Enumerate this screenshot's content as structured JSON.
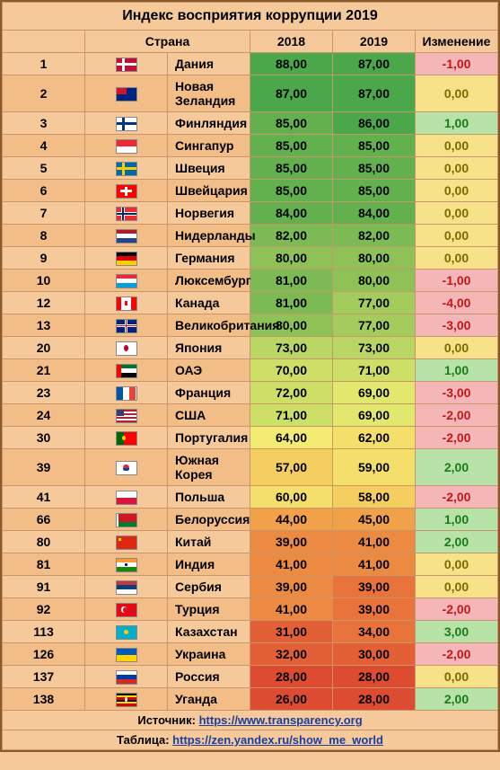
{
  "title": "Индекс восприятия коррупции 2019",
  "columns": {
    "country": "Страна",
    "y2018": "2018",
    "y2019": "2019",
    "change": "Изменение"
  },
  "footer": {
    "source_label": "Источник:",
    "source_url": "https://www.transparency.org",
    "table_label": "Таблица:",
    "table_url": "https://zen.yandex.ru/show_me_world"
  },
  "score_colors": {
    "g1": "#4aa84a",
    "g2": "#63b14e",
    "g3": "#7cbb53",
    "g4": "#8ec257",
    "g5": "#a3cc5c",
    "g6": "#b8d661",
    "g7": "#cddf67",
    "g8": "#e2e86d",
    "y1": "#f3ec73",
    "y2": "#f4df6a",
    "y3": "#f5ce60",
    "y4": "#f3b654",
    "o1": "#f0a14a",
    "o2": "#ed8a42",
    "r1": "#e9743b",
    "r2": "#e35f36",
    "r3": "#dd4b31"
  },
  "change_colors": {
    "pos": "#b7e3a8",
    "neg": "#f4b6b6",
    "zero": "#f7e28a"
  },
  "rows": [
    {
      "rank": 1,
      "flag": "dk",
      "name": "Дания",
      "v18": "88,00",
      "c18": "g1",
      "v19": "87,00",
      "c19": "g1",
      "chg": "-1,00",
      "cc": "neg"
    },
    {
      "rank": 2,
      "flag": "nz",
      "name": "Новая Зеландия",
      "v18": "87,00",
      "c18": "g1",
      "v19": "87,00",
      "c19": "g1",
      "chg": "0,00",
      "cc": "zero"
    },
    {
      "rank": 3,
      "flag": "fi",
      "name": "Финляндия",
      "v18": "85,00",
      "c18": "g2",
      "v19": "86,00",
      "c19": "g1",
      "chg": "1,00",
      "cc": "pos"
    },
    {
      "rank": 4,
      "flag": "sg",
      "name": "Сингапур",
      "v18": "85,00",
      "c18": "g2",
      "v19": "85,00",
      "c19": "g2",
      "chg": "0,00",
      "cc": "zero"
    },
    {
      "rank": 5,
      "flag": "se",
      "name": "Швеция",
      "v18": "85,00",
      "c18": "g2",
      "v19": "85,00",
      "c19": "g2",
      "chg": "0,00",
      "cc": "zero"
    },
    {
      "rank": 6,
      "flag": "ch",
      "name": "Швейцария",
      "v18": "85,00",
      "c18": "g2",
      "v19": "85,00",
      "c19": "g2",
      "chg": "0,00",
      "cc": "zero"
    },
    {
      "rank": 7,
      "flag": "no",
      "name": "Норвегия",
      "v18": "84,00",
      "c18": "g2",
      "v19": "84,00",
      "c19": "g2",
      "chg": "0,00",
      "cc": "zero"
    },
    {
      "rank": 8,
      "flag": "nl",
      "name": "Нидерланды",
      "v18": "82,00",
      "c18": "g3",
      "v19": "82,00",
      "c19": "g3",
      "chg": "0,00",
      "cc": "zero"
    },
    {
      "rank": 9,
      "flag": "de",
      "name": "Германия",
      "v18": "80,00",
      "c18": "g4",
      "v19": "80,00",
      "c19": "g4",
      "chg": "0,00",
      "cc": "zero"
    },
    {
      "rank": 10,
      "flag": "lu",
      "name": "Люксембург",
      "v18": "81,00",
      "c18": "g3",
      "v19": "80,00",
      "c19": "g4",
      "chg": "-1,00",
      "cc": "neg"
    },
    {
      "rank": 12,
      "flag": "ca",
      "name": "Канада",
      "v18": "81,00",
      "c18": "g3",
      "v19": "77,00",
      "c19": "g5",
      "chg": "-4,00",
      "cc": "neg"
    },
    {
      "rank": 13,
      "flag": "gb",
      "name": "Великобритания",
      "v18": "80,00",
      "c18": "g4",
      "v19": "77,00",
      "c19": "g5",
      "chg": "-3,00",
      "cc": "neg"
    },
    {
      "rank": 20,
      "flag": "jp",
      "name": "Япония",
      "v18": "73,00",
      "c18": "g6",
      "v19": "73,00",
      "c19": "g6",
      "chg": "0,00",
      "cc": "zero"
    },
    {
      "rank": 21,
      "flag": "ae",
      "name": "ОАЭ",
      "v18": "70,00",
      "c18": "g7",
      "v19": "71,00",
      "c19": "g7",
      "chg": "1,00",
      "cc": "pos"
    },
    {
      "rank": 23,
      "flag": "fr",
      "name": "Франция",
      "v18": "72,00",
      "c18": "g7",
      "v19": "69,00",
      "c19": "g8",
      "chg": "-3,00",
      "cc": "neg"
    },
    {
      "rank": 24,
      "flag": "us",
      "name": "США",
      "v18": "71,00",
      "c18": "g7",
      "v19": "69,00",
      "c19": "g8",
      "chg": "-2,00",
      "cc": "neg"
    },
    {
      "rank": 30,
      "flag": "pt",
      "name": "Португалия",
      "v18": "64,00",
      "c18": "y1",
      "v19": "62,00",
      "c19": "y2",
      "chg": "-2,00",
      "cc": "neg"
    },
    {
      "rank": 39,
      "flag": "kr",
      "name": "Южная Корея",
      "v18": "57,00",
      "c18": "y3",
      "v19": "59,00",
      "c19": "y2",
      "chg": "2,00",
      "cc": "pos"
    },
    {
      "rank": 41,
      "flag": "pl",
      "name": "Польша",
      "v18": "60,00",
      "c18": "y2",
      "v19": "58,00",
      "c19": "y3",
      "chg": "-2,00",
      "cc": "neg"
    },
    {
      "rank": 66,
      "flag": "by",
      "name": "Белоруссия",
      "v18": "44,00",
      "c18": "o1",
      "v19": "45,00",
      "c19": "o1",
      "chg": "1,00",
      "cc": "pos"
    },
    {
      "rank": 80,
      "flag": "cn",
      "name": "Китай",
      "v18": "39,00",
      "c18": "o2",
      "v19": "41,00",
      "c19": "o2",
      "chg": "2,00",
      "cc": "pos"
    },
    {
      "rank": 81,
      "flag": "in",
      "name": "Индия",
      "v18": "41,00",
      "c18": "o2",
      "v19": "41,00",
      "c19": "o2",
      "chg": "0,00",
      "cc": "zero"
    },
    {
      "rank": 91,
      "flag": "rs",
      "name": "Сербия",
      "v18": "39,00",
      "c18": "o2",
      "v19": "39,00",
      "c19": "r1",
      "chg": "0,00",
      "cc": "zero"
    },
    {
      "rank": 92,
      "flag": "tr",
      "name": "Турция",
      "v18": "41,00",
      "c18": "o2",
      "v19": "39,00",
      "c19": "r1",
      "chg": "-2,00",
      "cc": "neg"
    },
    {
      "rank": 113,
      "flag": "kz",
      "name": "Казахстан",
      "v18": "31,00",
      "c18": "r2",
      "v19": "34,00",
      "c19": "r1",
      "chg": "3,00",
      "cc": "pos"
    },
    {
      "rank": 126,
      "flag": "ua",
      "name": "Украина",
      "v18": "32,00",
      "c18": "r2",
      "v19": "30,00",
      "c19": "r2",
      "chg": "-2,00",
      "cc": "neg"
    },
    {
      "rank": 137,
      "flag": "ru",
      "name": "Россия",
      "v18": "28,00",
      "c18": "r3",
      "v19": "28,00",
      "c19": "r3",
      "chg": "0,00",
      "cc": "zero"
    },
    {
      "rank": 138,
      "flag": "ug",
      "name": "Уганда",
      "v18": "26,00",
      "c18": "r3",
      "v19": "28,00",
      "c19": "r3",
      "chg": "2,00",
      "cc": "pos"
    }
  ],
  "flags": {
    "dk": {
      "bg": "#c60c30",
      "parts": [
        {
          "l": "28%",
          "t": 0,
          "w": "14%",
          "h": "100%",
          "bg": "#fff"
        },
        {
          "l": 0,
          "t": "40%",
          "w": "100%",
          "h": "20%",
          "bg": "#fff"
        }
      ]
    },
    "nz": {
      "bg": "#00247d",
      "parts": [
        {
          "l": 0,
          "t": 0,
          "w": "50%",
          "h": "50%",
          "bg": "#cf142b"
        }
      ]
    },
    "fi": {
      "bg": "#fff",
      "parts": [
        {
          "l": "28%",
          "t": 0,
          "w": "16%",
          "h": "100%",
          "bg": "#003580"
        },
        {
          "l": 0,
          "t": "38%",
          "w": "100%",
          "h": "24%",
          "bg": "#003580"
        }
      ]
    },
    "sg": {
      "bg": "#fff",
      "parts": [
        {
          "l": 0,
          "t": 0,
          "w": "100%",
          "h": "50%",
          "bg": "#ed2939"
        }
      ]
    },
    "se": {
      "bg": "#006aa7",
      "parts": [
        {
          "l": "30%",
          "t": 0,
          "w": "14%",
          "h": "100%",
          "bg": "#fecc00"
        },
        {
          "l": 0,
          "t": "40%",
          "w": "100%",
          "h": "20%",
          "bg": "#fecc00"
        }
      ]
    },
    "ch": {
      "bg": "#ff0000",
      "parts": [
        {
          "l": "42%",
          "t": "15%",
          "w": "16%",
          "h": "70%",
          "bg": "#fff"
        },
        {
          "l": "20%",
          "t": "40%",
          "w": "60%",
          "h": "20%",
          "bg": "#fff"
        }
      ]
    },
    "no": {
      "bg": "#ef2b2d",
      "parts": [
        {
          "l": "26%",
          "t": 0,
          "w": "18%",
          "h": "100%",
          "bg": "#fff"
        },
        {
          "l": 0,
          "t": "36%",
          "w": "100%",
          "h": "28%",
          "bg": "#fff"
        },
        {
          "l": "30%",
          "t": 0,
          "w": "10%",
          "h": "100%",
          "bg": "#002868"
        },
        {
          "l": 0,
          "t": "42%",
          "w": "100%",
          "h": "16%",
          "bg": "#002868"
        }
      ]
    },
    "nl": {
      "bg": "#fff",
      "parts": [
        {
          "l": 0,
          "t": 0,
          "w": "100%",
          "h": "33%",
          "bg": "#ae1c28"
        },
        {
          "l": 0,
          "t": "67%",
          "w": "100%",
          "h": "33%",
          "bg": "#21468b"
        }
      ]
    },
    "de": {
      "bg": "#ffce00",
      "parts": [
        {
          "l": 0,
          "t": 0,
          "w": "100%",
          "h": "33%",
          "bg": "#000"
        },
        {
          "l": 0,
          "t": "33%",
          "w": "100%",
          "h": "34%",
          "bg": "#dd0000"
        }
      ]
    },
    "lu": {
      "bg": "#fff",
      "parts": [
        {
          "l": 0,
          "t": 0,
          "w": "100%",
          "h": "33%",
          "bg": "#ed2939"
        },
        {
          "l": 0,
          "t": "67%",
          "w": "100%",
          "h": "33%",
          "bg": "#00a1de"
        }
      ]
    },
    "ca": {
      "bg": "#fff",
      "parts": [
        {
          "l": 0,
          "t": 0,
          "w": "25%",
          "h": "100%",
          "bg": "#ff0000"
        },
        {
          "l": "75%",
          "t": 0,
          "w": "25%",
          "h": "100%",
          "bg": "#ff0000"
        },
        {
          "l": "45%",
          "t": "30%",
          "w": "10%",
          "h": "40%",
          "bg": "#ff0000"
        }
      ]
    },
    "gb": {
      "bg": "#00247d",
      "parts": [
        {
          "l": 0,
          "t": "40%",
          "w": "100%",
          "h": "20%",
          "bg": "#fff"
        },
        {
          "l": "43%",
          "t": 0,
          "w": "14%",
          "h": "100%",
          "bg": "#fff"
        },
        {
          "l": 0,
          "t": "44%",
          "w": "100%",
          "h": "12%",
          "bg": "#cf142b"
        },
        {
          "l": "46%",
          "t": 0,
          "w": "8%",
          "h": "100%",
          "bg": "#cf142b"
        }
      ]
    },
    "jp": {
      "bg": "#fff",
      "parts": [
        {
          "l": "38%",
          "t": "25%",
          "w": "24%",
          "h": "50%",
          "bg": "#bc002d",
          "r": "50%"
        }
      ]
    },
    "ae": {
      "bg": "#fff",
      "parts": [
        {
          "l": 0,
          "t": 0,
          "w": "25%",
          "h": "100%",
          "bg": "#ff0000"
        },
        {
          "l": "25%",
          "t": 0,
          "w": "75%",
          "h": "33%",
          "bg": "#00732f"
        },
        {
          "l": "25%",
          "t": "67%",
          "w": "75%",
          "h": "33%",
          "bg": "#000"
        }
      ]
    },
    "fr": {
      "bg": "#fff",
      "parts": [
        {
          "l": 0,
          "t": 0,
          "w": "33%",
          "h": "100%",
          "bg": "#0055a4"
        },
        {
          "l": "67%",
          "t": 0,
          "w": "33%",
          "h": "100%",
          "bg": "#ef4135"
        }
      ]
    },
    "us": {
      "bg": "#fff",
      "parts": [
        {
          "l": 0,
          "t": 0,
          "w": "100%",
          "h": "14%",
          "bg": "#b22234"
        },
        {
          "l": 0,
          "t": "28%",
          "w": "100%",
          "h": "14%",
          "bg": "#b22234"
        },
        {
          "l": 0,
          "t": "57%",
          "w": "100%",
          "h": "14%",
          "bg": "#b22234"
        },
        {
          "l": 0,
          "t": "86%",
          "w": "100%",
          "h": "14%",
          "bg": "#b22234"
        },
        {
          "l": 0,
          "t": 0,
          "w": "40%",
          "h": "54%",
          "bg": "#3c3b6e"
        }
      ]
    },
    "pt": {
      "bg": "#ff0000",
      "parts": [
        {
          "l": 0,
          "t": 0,
          "w": "40%",
          "h": "100%",
          "bg": "#006600"
        },
        {
          "l": "30%",
          "t": "30%",
          "w": "20%",
          "h": "40%",
          "bg": "#ffcc00",
          "r": "50%"
        }
      ]
    },
    "kr": {
      "bg": "#fff",
      "parts": [
        {
          "l": "36%",
          "t": "25%",
          "w": "28%",
          "h": "50%",
          "bg": "#cd2e3a",
          "r": "50%"
        },
        {
          "l": "36%",
          "t": "50%",
          "w": "28%",
          "h": "25%",
          "bg": "#0047a0",
          "r": "0 0 50% 50%"
        }
      ]
    },
    "pl": {
      "bg": "#fff",
      "parts": [
        {
          "l": 0,
          "t": "50%",
          "w": "100%",
          "h": "50%",
          "bg": "#dc143c"
        }
      ]
    },
    "by": {
      "bg": "#ce1720",
      "parts": [
        {
          "l": 0,
          "t": "67%",
          "w": "100%",
          "h": "33%",
          "bg": "#007c30"
        },
        {
          "l": 0,
          "t": 0,
          "w": "12%",
          "h": "100%",
          "bg": "#fff"
        }
      ]
    },
    "cn": {
      "bg": "#de2910",
      "parts": [
        {
          "l": "10%",
          "t": "15%",
          "w": "15%",
          "h": "25%",
          "bg": "#ffde00"
        }
      ]
    },
    "in": {
      "bg": "#fff",
      "parts": [
        {
          "l": 0,
          "t": 0,
          "w": "100%",
          "h": "33%",
          "bg": "#ff9933"
        },
        {
          "l": 0,
          "t": "67%",
          "w": "100%",
          "h": "33%",
          "bg": "#138808"
        },
        {
          "l": "45%",
          "t": "40%",
          "w": "10%",
          "h": "20%",
          "bg": "#000080",
          "r": "50%"
        }
      ]
    },
    "rs": {
      "bg": "#fff",
      "parts": [
        {
          "l": 0,
          "t": 0,
          "w": "100%",
          "h": "33%",
          "bg": "#c6363c"
        },
        {
          "l": 0,
          "t": "33%",
          "w": "100%",
          "h": "34%",
          "bg": "#0c4076"
        }
      ]
    },
    "tr": {
      "bg": "#e30a17",
      "parts": [
        {
          "l": "25%",
          "t": "25%",
          "w": "25%",
          "h": "50%",
          "bg": "#fff",
          "r": "50%"
        },
        {
          "l": "32%",
          "t": "28%",
          "w": "22%",
          "h": "44%",
          "bg": "#e30a17",
          "r": "50%"
        }
      ]
    },
    "kz": {
      "bg": "#00afca",
      "parts": [
        {
          "l": "40%",
          "t": "30%",
          "w": "20%",
          "h": "40%",
          "bg": "#fec50c",
          "r": "50%"
        }
      ]
    },
    "ua": {
      "bg": "#005bbb",
      "parts": [
        {
          "l": 0,
          "t": "50%",
          "w": "100%",
          "h": "50%",
          "bg": "#ffd500"
        }
      ]
    },
    "ru": {
      "bg": "#fff",
      "parts": [
        {
          "l": 0,
          "t": "33%",
          "w": "100%",
          "h": "34%",
          "bg": "#0039a6"
        },
        {
          "l": 0,
          "t": "67%",
          "w": "100%",
          "h": "33%",
          "bg": "#d52b1e"
        }
      ]
    },
    "ug": {
      "bg": "#fcdc04",
      "parts": [
        {
          "l": 0,
          "t": 0,
          "w": "100%",
          "h": "17%",
          "bg": "#000"
        },
        {
          "l": 0,
          "t": "33%",
          "w": "100%",
          "h": "17%",
          "bg": "#d90000"
        },
        {
          "l": 0,
          "t": "50%",
          "w": "100%",
          "h": "17%",
          "bg": "#000"
        },
        {
          "l": 0,
          "t": "83%",
          "w": "100%",
          "h": "17%",
          "bg": "#d90000"
        },
        {
          "l": "42%",
          "t": "30%",
          "w": "16%",
          "h": "40%",
          "bg": "#fff",
          "r": "50%"
        }
      ]
    }
  }
}
